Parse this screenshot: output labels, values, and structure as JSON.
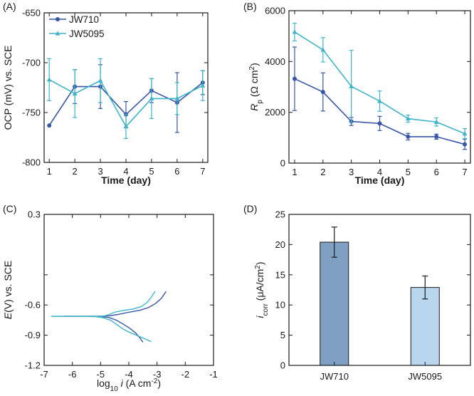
{
  "colors": {
    "dark": "#3856a8",
    "cyan": "#3fb4c8",
    "bar_dark": "#7f9fc3",
    "bar_light": "#b9d6ef",
    "axis": "#1a1a1a"
  },
  "chart_data": [
    {
      "panel": "(A)",
      "type": "line",
      "xlabel": "Time (day)",
      "ylabel": "OCP (mV) vs. SCE",
      "xlim": [
        0.8,
        7.2
      ],
      "ylim": [
        -800,
        -650
      ],
      "xticks": [
        1,
        2,
        3,
        4,
        5,
        6,
        7
      ],
      "yticks": [
        -800,
        -750,
        -700,
        -650
      ],
      "legend_position": "top-left",
      "series": [
        {
          "name": "JW710",
          "marker": "circle",
          "color": "dark",
          "x": [
            1,
            2,
            3,
            4,
            5,
            6,
            7
          ],
          "y": [
            -763,
            -724,
            -724,
            -752,
            -728,
            -740,
            -720
          ],
          "err": [
            0,
            17,
            22,
            13,
            12,
            30,
            12
          ]
        },
        {
          "name": "JW5095",
          "marker": "triangle",
          "color": "cyan",
          "x": [
            1,
            2,
            3,
            4,
            5,
            6,
            7
          ],
          "y": [
            -717,
            -731,
            -718,
            -764,
            -736,
            -736,
            -723
          ],
          "err": [
            21,
            24,
            22,
            12,
            20,
            16,
            15
          ]
        }
      ]
    },
    {
      "panel": "(B)",
      "type": "line",
      "xlabel": "Time (day)",
      "ylabel_italic": "R",
      "ylabel_sub": "p",
      "ylabel_rest": " (Ω cm",
      "ylabel_sup": "2",
      "ylabel_close": ")",
      "xlim": [
        0.8,
        7.2
      ],
      "ylim": [
        0,
        6000
      ],
      "xticks": [
        1,
        2,
        3,
        4,
        5,
        6,
        7
      ],
      "yticks": [
        0,
        2000,
        4000,
        6000
      ],
      "series": [
        {
          "name": "JW710",
          "marker": "circle",
          "color": "dark",
          "x": [
            1,
            2,
            3,
            4,
            5,
            6,
            7
          ],
          "y": [
            3320,
            2800,
            1640,
            1560,
            1040,
            1040,
            740
          ],
          "err": [
            1250,
            750,
            160,
            280,
            130,
            100,
            200
          ]
        },
        {
          "name": "JW5095",
          "marker": "triangle",
          "color": "cyan",
          "x": [
            1,
            2,
            3,
            4,
            5,
            6,
            7
          ],
          "y": [
            5160,
            4460,
            3020,
            2440,
            1750,
            1620,
            1160
          ],
          "err": [
            350,
            480,
            1420,
            400,
            140,
            160,
            200
          ]
        }
      ]
    },
    {
      "panel": "(C)",
      "type": "line",
      "xlabel_pre": "log",
      "xlabel_sub": "10",
      "xlabel_italic": "i",
      "xlabel_rest": " (A cm",
      "xlabel_sup": "-2",
      "xlabel_close": ")",
      "ylabel_italic": "E",
      "ylabel_rest": "(V) vs. SCE",
      "xlim": [
        -7,
        -1
      ],
      "ylim": [
        -1.2,
        0.3
      ],
      "xticks": [
        -7,
        -6,
        -5,
        -4,
        -3,
        -2,
        -1
      ],
      "xtick_labels": [
        "-7",
        "-6",
        "-5",
        "-4",
        "-3",
        "-2",
        "-1"
      ],
      "yticks": [
        -1.2,
        -0.9,
        -0.6,
        -0.3,
        0.3
      ],
      "ytick_labels": [
        "-1.2",
        "-0.9",
        "-0.6",
        "",
        "0.3"
      ],
      "series": [
        {
          "name": "JW710",
          "color": "dark",
          "anodic": [
            [
              -6.3,
              -0.712
            ],
            [
              -5.5,
              -0.712
            ],
            [
              -5.0,
              -0.711
            ],
            [
              -4.7,
              -0.708
            ],
            [
              -4.4,
              -0.695
            ],
            [
              -4.0,
              -0.672
            ],
            [
              -3.6,
              -0.652
            ],
            [
              -3.3,
              -0.625
            ],
            [
              -3.05,
              -0.585
            ],
            [
              -2.85,
              -0.535
            ],
            [
              -2.68,
              -0.465
            ]
          ],
          "cathodic": [
            [
              -6.3,
              -0.712
            ],
            [
              -5.5,
              -0.713
            ],
            [
              -5.0,
              -0.715
            ],
            [
              -4.7,
              -0.725
            ],
            [
              -4.45,
              -0.75
            ],
            [
              -4.2,
              -0.79
            ],
            [
              -3.95,
              -0.835
            ],
            [
              -3.75,
              -0.88
            ],
            [
              -3.6,
              -0.93
            ],
            [
              -3.5,
              -0.97
            ]
          ]
        },
        {
          "name": "JW5095",
          "color": "cyan",
          "anodic": [
            [
              -6.75,
              -0.712
            ],
            [
              -5.8,
              -0.712
            ],
            [
              -5.2,
              -0.712
            ],
            [
              -4.9,
              -0.712
            ],
            [
              -4.7,
              -0.695
            ],
            [
              -4.5,
              -0.672
            ],
            [
              -4.2,
              -0.655
            ],
            [
              -3.85,
              -0.64
            ],
            [
              -3.55,
              -0.615
            ],
            [
              -3.35,
              -0.575
            ],
            [
              -3.2,
              -0.52
            ],
            [
              -3.07,
              -0.465
            ]
          ],
          "cathodic": [
            [
              -6.75,
              -0.712
            ],
            [
              -5.8,
              -0.713
            ],
            [
              -5.2,
              -0.715
            ],
            [
              -4.95,
              -0.725
            ],
            [
              -4.65,
              -0.75
            ],
            [
              -4.4,
              -0.8
            ],
            [
              -4.2,
              -0.84
            ],
            [
              -3.95,
              -0.875
            ],
            [
              -3.65,
              -0.91
            ],
            [
              -3.4,
              -0.94
            ],
            [
              -3.2,
              -0.965
            ]
          ]
        }
      ]
    },
    {
      "panel": "(D)",
      "type": "bar",
      "ylabel_italic": "i",
      "ylabel_sub": "corr",
      "ylabel_rest": " (μA/cm",
      "ylabel_sup": "2",
      "ylabel_close": ")",
      "categories": [
        "JW710",
        "JW5095"
      ],
      "values": [
        20.4,
        12.9
      ],
      "err": [
        2.5,
        1.9
      ],
      "colors": [
        "bar_dark",
        "bar_light"
      ],
      "ylim": [
        0,
        25
      ],
      "yticks": [
        0,
        5,
        10,
        15,
        20,
        25
      ]
    }
  ]
}
